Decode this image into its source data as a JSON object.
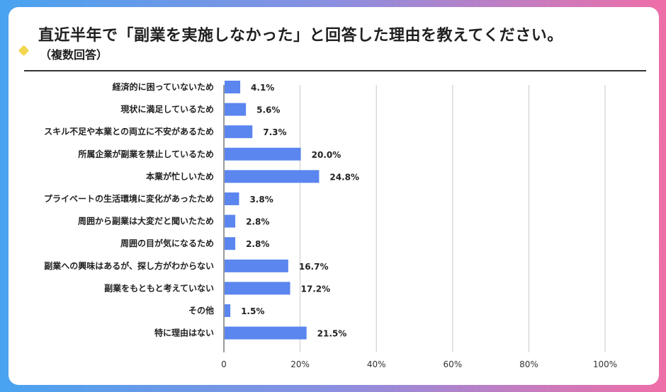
{
  "header": {
    "title": "直近半年で「副業を実施しなかった」と回答した理由を教えてください。",
    "subtitle": "（複数回答）"
  },
  "chart_data": {
    "type": "bar",
    "orientation": "horizontal",
    "title": "直近半年で「副業を実施しなかった」と回答した理由を教えてください。",
    "subtitle": "（複数回答）",
    "categories": [
      "経済的に困っていないため",
      "現状に満足しているため",
      "スキル不足や本業との両立に不安があるため",
      "所属企業が副業を禁止しているため",
      "本業が忙しいため",
      "プライベートの生活環境に変化があったため",
      "周囲から副業は大変だと聞いたため",
      "周囲の目が気になるため",
      "副業への興味はあるが、探し方がわからない",
      "副業をもともと考えていない",
      "その他",
      "特に理由はない"
    ],
    "values": [
      4.1,
      5.6,
      7.3,
      20.0,
      24.8,
      3.8,
      2.8,
      2.8,
      16.7,
      17.2,
      1.5,
      21.5
    ],
    "value_labels": [
      "4.1%",
      "5.6%",
      "7.3%",
      "20.0%",
      "24.8%",
      "3.8%",
      "2.8%",
      "2.8%",
      "16.7%",
      "17.2%",
      "1.5%",
      "21.5%"
    ],
    "xticks": [
      0,
      20,
      40,
      60,
      80,
      100
    ],
    "xtick_labels": [
      "0",
      "20%",
      "40%",
      "60%",
      "80%",
      "100%"
    ],
    "xlim": [
      0,
      100
    ],
    "bar_color": "#5b86ef",
    "grid_color": "#c9c9c9"
  }
}
